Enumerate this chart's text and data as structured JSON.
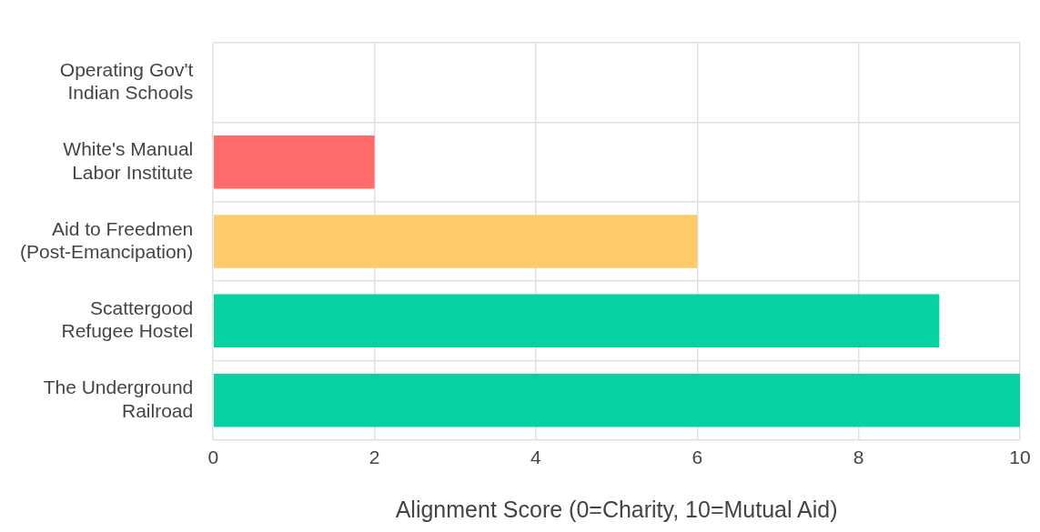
{
  "chart_data": {
    "type": "bar",
    "orientation": "horizontal",
    "xlabel": "Alignment Score (0=Charity, 10=Mutual Aid)",
    "categories": [
      "Operating Gov't Indian Schools",
      "White's Manual Labor Institute",
      "Aid to Freedmen (Post-Emancipation)",
      "Scattergood Refugee Hostel",
      "The Underground Railroad"
    ],
    "values": [
      0,
      2,
      6,
      9,
      10
    ],
    "colors": [
      "#ff6b6b",
      "#ff6b6b",
      "#fecb6a",
      "#06d1a0",
      "#06d1a0"
    ],
    "xlim": [
      0,
      10
    ],
    "xticks": [
      0,
      2,
      4,
      6,
      8,
      10
    ],
    "grid": true,
    "legend": false
  }
}
